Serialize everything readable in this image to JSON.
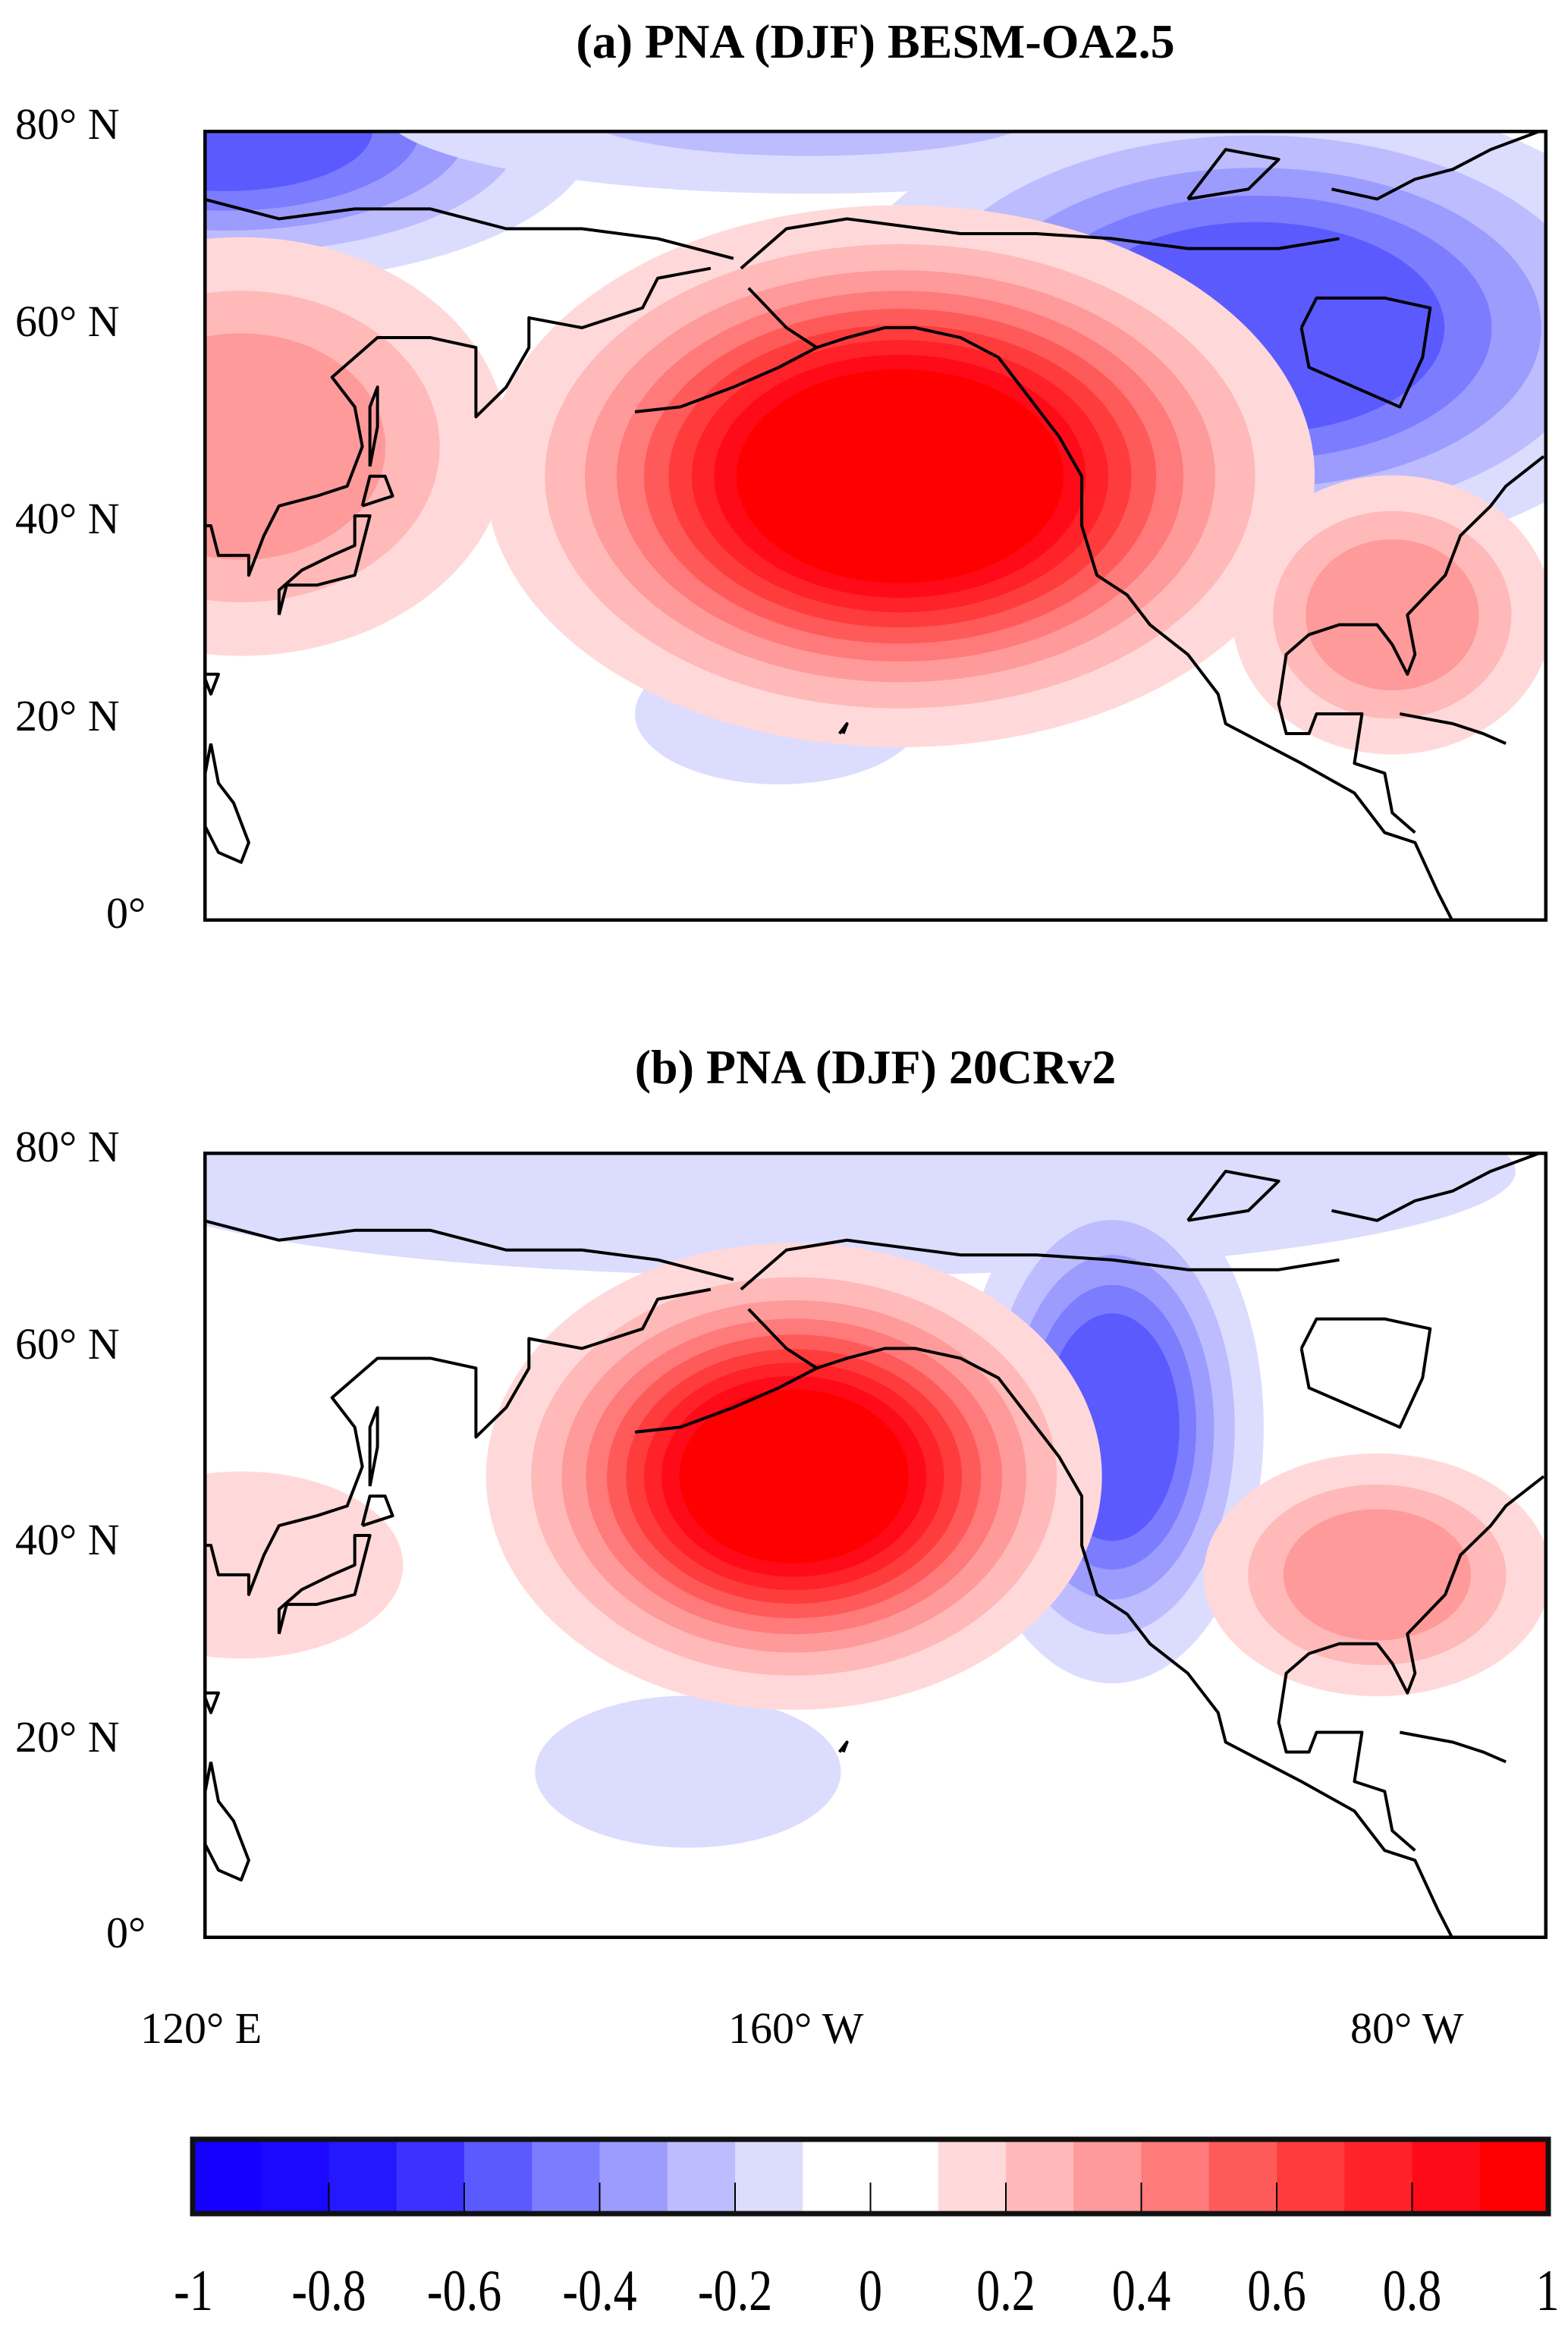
{
  "chart_data": [
    {
      "type": "heatmap",
      "title": "(a) PNA (DJF) BESM-OA2.5",
      "lon_range_east": [
        120,
        297.5
      ],
      "lat_range": [
        0,
        80
      ],
      "ytick_labels": [
        "80° N",
        "60° N",
        "40° N",
        "20° N",
        "0°"
      ],
      "anomaly_centers": [
        {
          "lon": 123,
          "lat": 80,
          "value": -0.5,
          "sigma_lon": 25,
          "sigma_lat": 8
        },
        {
          "lon": 200,
          "lat": 82,
          "value": -0.2,
          "sigma_lon": 40,
          "sigma_lat": 6
        },
        {
          "lon": 259,
          "lat": 60,
          "value": -0.55,
          "sigma_lon": 28,
          "sigma_lat": 12
        },
        {
          "lon": 196,
          "lat": 21,
          "value": -0.15,
          "sigma_lon": 16,
          "sigma_lat": 6
        },
        {
          "lon": 125,
          "lat": 48,
          "value": 0.35,
          "sigma_lon": 20,
          "sigma_lat": 12
        },
        {
          "lon": 212,
          "lat": 45,
          "value": 1.0,
          "sigma_lon": 24,
          "sigma_lat": 12
        },
        {
          "lon": 277,
          "lat": 31,
          "value": 0.35,
          "sigma_lon": 12,
          "sigma_lat": 8
        }
      ]
    },
    {
      "type": "heatmap",
      "title": "(b) PNA (DJF) 20CRv2",
      "lon_range_east": [
        120,
        297.5
      ],
      "lat_range": [
        0,
        80
      ],
      "ytick_labels": [
        "80° N",
        "60° N",
        "40° N",
        "20° N",
        "0°"
      ],
      "anomaly_centers": [
        {
          "lon": 200,
          "lat": 78,
          "value": -0.18,
          "sigma_lon": 70,
          "sigma_lat": 8
        },
        {
          "lon": 240,
          "lat": 52,
          "value": -0.55,
          "sigma_lon": 10,
          "sigma_lat": 13
        },
        {
          "lon": 184,
          "lat": 17,
          "value": -0.15,
          "sigma_lon": 17,
          "sigma_lat": 6.5
        },
        {
          "lon": 125,
          "lat": 38,
          "value": 0.15,
          "sigma_lon": 18,
          "sigma_lat": 8
        },
        {
          "lon": 198,
          "lat": 47,
          "value": 0.95,
          "sigma_lon": 18,
          "sigma_lat": 10.5
        },
        {
          "lon": 275,
          "lat": 37,
          "value": 0.35,
          "sigma_lon": 13,
          "sigma_lat": 7
        }
      ]
    }
  ],
  "xtick_labels": [
    "120° E",
    "160° W",
    "80° W"
  ],
  "xtick_lon_east": [
    120,
    200,
    280
  ],
  "colorbar": {
    "levels": [
      -1,
      -0.9,
      -0.8,
      -0.7,
      -0.6,
      -0.5,
      -0.4,
      -0.3,
      -0.2,
      -0.1,
      0,
      0.1,
      0.2,
      0.3,
      0.4,
      0.5,
      0.6,
      0.7,
      0.8,
      0.9,
      1
    ],
    "colors": [
      "#1500ff",
      "#1a08ff",
      "#2418ff",
      "#3c32ff",
      "#5a5aff",
      "#7c7cff",
      "#9c9cff",
      "#bcbcff",
      "#dcdcff",
      "#ffffff",
      "#ffffff",
      "#ffd9d9",
      "#ffb9b9",
      "#ff9a9a",
      "#ff7a7a",
      "#ff5a5a",
      "#ff3c3c",
      "#ff2228",
      "#ff0a18",
      "#ff0000"
    ],
    "tick_labels": [
      "-1",
      "-0.8",
      "-0.6",
      "-0.4",
      "-0.2",
      "0",
      "0.2",
      "0.4",
      "0.6",
      "0.8",
      "1"
    ]
  }
}
